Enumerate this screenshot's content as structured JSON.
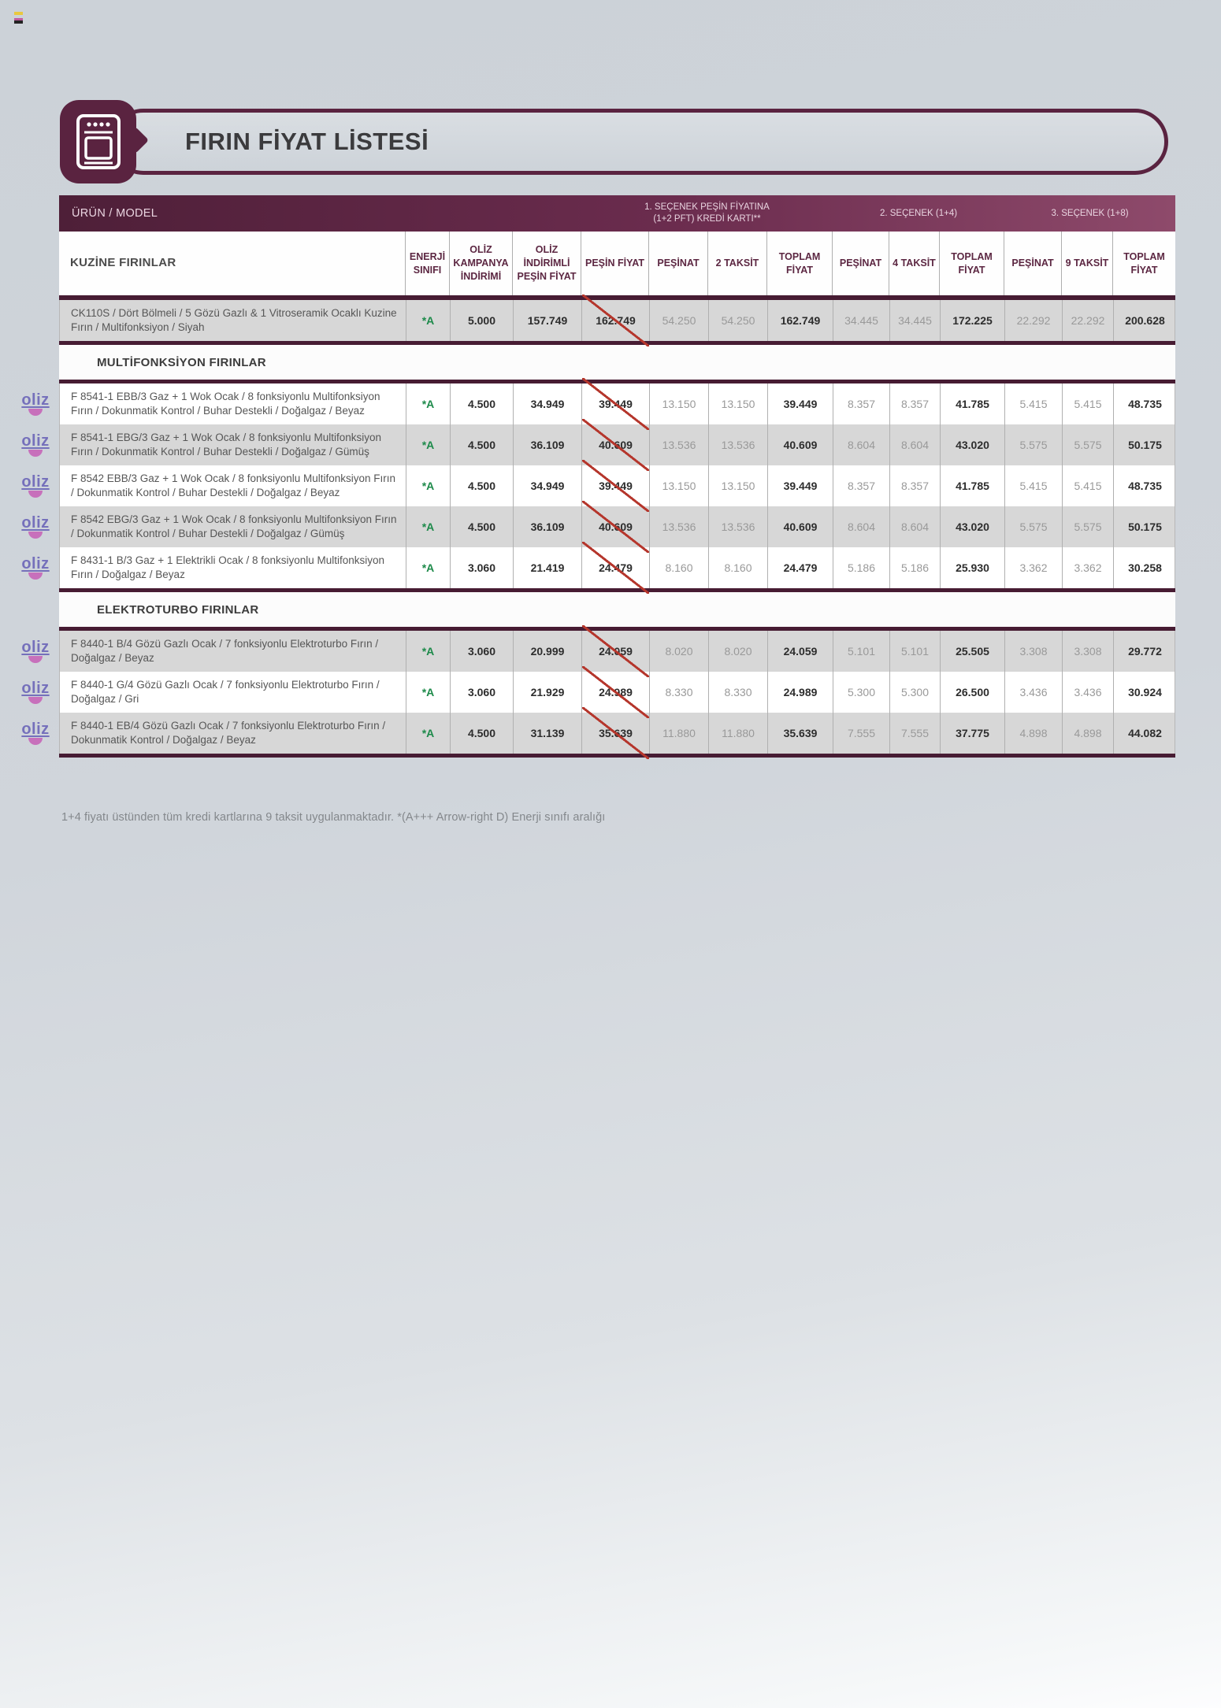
{
  "banner": {
    "title": "FIRIN FİYAT LİSTESİ"
  },
  "logo": {
    "text": "oliz"
  },
  "colors": {
    "accent_maroon": "#5a2340",
    "energy_green": "#1d8a4a",
    "strike_red": "#b5362c",
    "logo_purple": "#7570bb",
    "logo_pink": "#c770bb"
  },
  "table": {
    "band": {
      "urun_model": "ÜRÜN / MODEL",
      "opt1_line1": "1. SEÇENEK PEŞİN FİYATINA",
      "opt1_line2": "(1+2 PFT) KREDİ KARTI**",
      "opt2": "2. SEÇENEK (1+4)",
      "opt3": "3. SEÇENEK (1+8)"
    },
    "first_col_header": "KUZİNE FIRINLAR",
    "columns": [
      "ENERJİ SINIFI",
      "OLİZ KAMPANYA İNDİRİMİ",
      "OLİZ İNDİRİMLİ PEŞİN FİYAT",
      "PEŞİN FİYAT",
      "PEŞİNAT",
      "2 TAKSİT",
      "TOPLAM FİYAT",
      "PEŞİNAT",
      "4 TAKSİT",
      "TOPLAM FİYAT",
      "PEŞİNAT",
      "9 TAKSİT",
      "TOPLAM FİYAT"
    ],
    "sections": [
      {
        "header": null,
        "rows": [
          {
            "model": "CK110S / Dört Bölmeli / 5 Gözü Gazlı & 1 Vitroseramik Ocaklı Kuzine Fırın / Multifonksiyon / Siyah",
            "energy": "*A",
            "logo": false,
            "shade": "gray",
            "values": [
              "5.000",
              "157.749",
              "162.749",
              "54.250",
              "54.250",
              "162.749",
              "34.445",
              "34.445",
              "172.225",
              "22.292",
              "22.292",
              "200.628"
            ]
          }
        ]
      },
      {
        "header": "MULTİFONKSİYON FIRINLAR",
        "rows": [
          {
            "model": "F 8541-1 EBB/3 Gaz + 1 Wok Ocak / 8 fonksiyonlu Multifonksiyon Fırın / Dokunmatik Kontrol / Buhar Destekli / Doğalgaz / Beyaz",
            "energy": "*A",
            "logo": true,
            "shade": "white",
            "values": [
              "4.500",
              "34.949",
              "39.449",
              "13.150",
              "13.150",
              "39.449",
              "8.357",
              "8.357",
              "41.785",
              "5.415",
              "5.415",
              "48.735"
            ]
          },
          {
            "model": "F 8541-1 EBG/3 Gaz + 1 Wok Ocak / 8 fonksiyonlu Multifonksiyon Fırın / Dokunmatik Kontrol / Buhar Destekli / Doğalgaz / Gümüş",
            "energy": "*A",
            "logo": true,
            "shade": "gray",
            "values": [
              "4.500",
              "36.109",
              "40.609",
              "13.536",
              "13.536",
              "40.609",
              "8.604",
              "8.604",
              "43.020",
              "5.575",
              "5.575",
              "50.175"
            ]
          },
          {
            "model": "F 8542 EBB/3 Gaz + 1 Wok Ocak / 8 fonksiyonlu Multifonksiyon Fırın / Dokunmatik Kontrol / Buhar Destekli / Doğalgaz / Beyaz",
            "energy": "*A",
            "logo": true,
            "shade": "white",
            "values": [
              "4.500",
              "34.949",
              "39.449",
              "13.150",
              "13.150",
              "39.449",
              "8.357",
              "8.357",
              "41.785",
              "5.415",
              "5.415",
              "48.735"
            ]
          },
          {
            "model": "F 8542 EBG/3 Gaz + 1 Wok Ocak / 8 fonksiyonlu Multifonksiyon Fırın / Dokunmatik Kontrol / Buhar Destekli / Doğalgaz / Gümüş",
            "energy": "*A",
            "logo": true,
            "shade": "gray",
            "values": [
              "4.500",
              "36.109",
              "40.609",
              "13.536",
              "13.536",
              "40.609",
              "8.604",
              "8.604",
              "43.020",
              "5.575",
              "5.575",
              "50.175"
            ]
          },
          {
            "model": "F 8431-1 B/3 Gaz + 1 Elektrikli Ocak / 8 fonksiyonlu Multifonksiyon Fırın / Doğalgaz / Beyaz",
            "energy": "*A",
            "logo": true,
            "shade": "white",
            "values": [
              "3.060",
              "21.419",
              "24.479",
              "8.160",
              "8.160",
              "24.479",
              "5.186",
              "5.186",
              "25.930",
              "3.362",
              "3.362",
              "30.258"
            ]
          }
        ]
      },
      {
        "header": "ELEKTROTURBO FIRINLAR",
        "rows": [
          {
            "model": "F 8440-1 B/4 Gözü Gazlı Ocak / 7 fonksiyonlu Elektroturbo Fırın / Doğalgaz / Beyaz",
            "energy": "*A",
            "logo": true,
            "shade": "gray",
            "values": [
              "3.060",
              "20.999",
              "24.059",
              "8.020",
              "8.020",
              "24.059",
              "5.101",
              "5.101",
              "25.505",
              "3.308",
              "3.308",
              "29.772"
            ]
          },
          {
            "model": "F 8440-1 G/4 Gözü Gazlı Ocak / 7 fonksiyonlu Elektroturbo Fırın / Doğalgaz / Gri",
            "energy": "*A",
            "logo": true,
            "shade": "white",
            "values": [
              "3.060",
              "21.929",
              "24.989",
              "8.330",
              "8.330",
              "24.989",
              "5.300",
              "5.300",
              "26.500",
              "3.436",
              "3.436",
              "30.924"
            ]
          },
          {
            "model": "F 8440-1 EB/4 Gözü Gazlı Ocak / 7 fonksiyonlu Elektroturbo Fırın / Dokunmatik Kontrol / Doğalgaz / Beyaz",
            "energy": "*A",
            "logo": true,
            "shade": "gray",
            "values": [
              "4.500",
              "31.139",
              "35.639",
              "11.880",
              "11.880",
              "35.639",
              "7.555",
              "7.555",
              "37.775",
              "4.898",
              "4.898",
              "44.082"
            ]
          }
        ]
      }
    ]
  },
  "footer": {
    "note": "1+4 fiyatı üstünden tüm kredi kartlarına 9 taksit uygulanmaktadır. *(A+++ Arrow-right D) Enerji sınıfı aralığı"
  }
}
